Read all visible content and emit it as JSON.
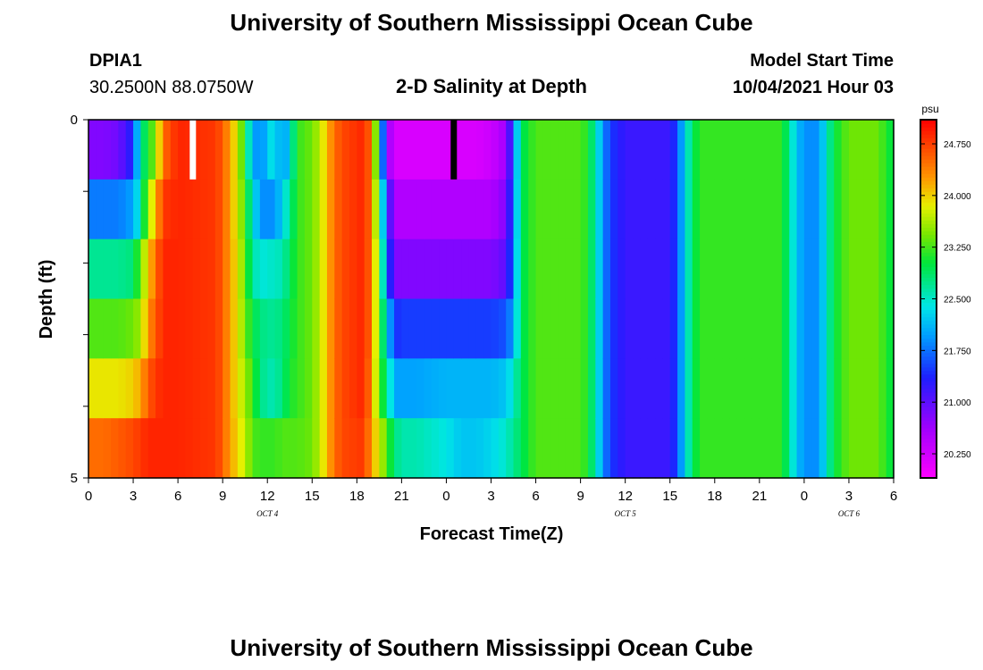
{
  "header": {
    "title": "University of Southern Mississippi Ocean Cube",
    "footer_title": "University of Southern Mississippi Ocean Cube",
    "station": "DPIA1",
    "coords": "30.2500N  88.0750W",
    "plot_title": "2-D Salinity at Depth",
    "start_label": "Model Start Time",
    "start_value": "10/04/2021 Hour 03"
  },
  "chart_data": {
    "type": "heatmap",
    "title": "2-D Salinity at Depth",
    "xlabel": "Forecast Time(Z)",
    "ylabel": "Depth (ft)",
    "x_ticks": [
      "0",
      "3",
      "6",
      "9",
      "12",
      "15",
      "18",
      "21",
      "0",
      "3",
      "6",
      "9",
      "12",
      "15",
      "18",
      "21",
      "0",
      "3",
      "6"
    ],
    "x_hours": [
      0,
      54
    ],
    "date_labels": [
      {
        "label": "OCT 4",
        "hour": 12
      },
      {
        "label": "OCT 5",
        "hour": 36
      },
      {
        "label": "OCT 6",
        "hour": 51
      }
    ],
    "y_ticks": [
      "0",
      "5"
    ],
    "y_range": [
      0,
      5
    ],
    "depth_levels": [
      0,
      1,
      2,
      3,
      4,
      5
    ],
    "colorbar": {
      "unit": "psu",
      "min": 19.9,
      "max": 25.1,
      "tick_values": [
        20.25,
        21.0,
        21.75,
        22.5,
        23.25,
        24.0,
        24.75
      ],
      "tick_labels": [
        "20.250",
        "21.000",
        "21.750",
        "22.500",
        "23.250",
        "24.000",
        "24.750"
      ]
    },
    "columns": [
      {
        "t": 0.0,
        "v": [
          20.8,
          21.8,
          22.7,
          23.3,
          23.9,
          24.5
        ]
      },
      {
        "t": 1.0,
        "v": [
          20.8,
          21.8,
          22.7,
          23.3,
          23.9,
          24.5
        ]
      },
      {
        "t": 2.0,
        "v": [
          20.9,
          21.8,
          22.7,
          23.3,
          23.9,
          24.6
        ]
      },
      {
        "t": 3.0,
        "v": [
          21.4,
          22.0,
          22.8,
          23.4,
          24.0,
          24.7
        ]
      },
      {
        "t": 3.5,
        "v": [
          22.7,
          22.6,
          23.4,
          23.6,
          24.2,
          24.8
        ]
      },
      {
        "t": 4.0,
        "v": [
          23.1,
          23.6,
          24.0,
          24.3,
          24.6,
          24.9
        ]
      },
      {
        "t": 4.5,
        "v": [
          23.5,
          24.1,
          24.5,
          24.6,
          24.8,
          24.9
        ]
      },
      {
        "t": 5.0,
        "v": [
          24.5,
          24.8,
          24.9,
          24.9,
          24.9,
          24.9
        ]
      },
      {
        "t": 6.0,
        "v": [
          24.9,
          24.9,
          24.9,
          24.9,
          24.9,
          24.9
        ]
      },
      {
        "t": 8.5,
        "v": [
          24.8,
          24.8,
          24.8,
          24.8,
          24.8,
          24.8
        ]
      },
      {
        "t": 9.0,
        "v": [
          24.6,
          24.6,
          24.6,
          24.6,
          24.6,
          24.6
        ]
      },
      {
        "t": 9.5,
        "v": [
          24.2,
          24.2,
          24.2,
          24.2,
          24.2,
          24.2
        ]
      },
      {
        "t": 10.0,
        "v": [
          23.8,
          23.8,
          23.9,
          23.9,
          23.9,
          24.0
        ]
      },
      {
        "t": 10.5,
        "v": [
          23.0,
          23.2,
          23.3,
          23.4,
          23.6,
          23.7
        ]
      },
      {
        "t": 11.0,
        "v": [
          22.1,
          22.5,
          22.7,
          23.0,
          23.2,
          23.3
        ]
      },
      {
        "t": 11.5,
        "v": [
          21.8,
          21.9,
          22.4,
          22.8,
          22.8,
          23.2
        ]
      },
      {
        "t": 12.0,
        "v": [
          22.2,
          21.9,
          22.5,
          22.7,
          22.6,
          23.2
        ]
      },
      {
        "t": 12.5,
        "v": [
          22.5,
          21.9,
          22.5,
          22.7,
          22.6,
          23.2
        ]
      },
      {
        "t": 13.0,
        "v": [
          21.8,
          22.3,
          22.6,
          22.8,
          22.8,
          23.3
        ]
      },
      {
        "t": 13.5,
        "v": [
          22.4,
          22.7,
          22.9,
          23.0,
          23.1,
          23.3
        ]
      },
      {
        "t": 14.0,
        "v": [
          23.2,
          23.2,
          23.2,
          23.2,
          23.2,
          23.3
        ]
      },
      {
        "t": 15.0,
        "v": [
          23.4,
          23.4,
          23.4,
          23.4,
          23.4,
          23.4
        ]
      },
      {
        "t": 15.5,
        "v": [
          23.7,
          23.7,
          23.7,
          23.7,
          23.7,
          23.7
        ]
      },
      {
        "t": 16.0,
        "v": [
          24.1,
          24.1,
          24.1,
          24.1,
          24.1,
          24.1
        ]
      },
      {
        "t": 16.5,
        "v": [
          24.5,
          24.5,
          24.5,
          24.5,
          24.5,
          24.5
        ]
      },
      {
        "t": 17.0,
        "v": [
          24.7,
          24.7,
          24.7,
          24.7,
          24.7,
          24.7
        ]
      },
      {
        "t": 18.5,
        "v": [
          24.9,
          24.9,
          24.9,
          24.9,
          24.9,
          24.8
        ]
      },
      {
        "t": 19.0,
        "v": [
          24.4,
          24.4,
          24.4,
          24.4,
          24.3,
          24.2
        ]
      },
      {
        "t": 19.5,
        "v": [
          22.6,
          23.0,
          23.3,
          23.3,
          23.3,
          23.8
        ]
      },
      {
        "t": 20.0,
        "v": [
          20.8,
          21.5,
          21.8,
          22.4,
          22.8,
          23.3
        ]
      },
      {
        "t": 20.5,
        "v": [
          20.2,
          20.5,
          20.8,
          21.4,
          22.0,
          22.8
        ]
      },
      {
        "t": 21.0,
        "v": [
          20.2,
          20.5,
          20.8,
          21.5,
          22.0,
          22.6
        ]
      },
      {
        "t": 22.0,
        "v": [
          20.2,
          20.5,
          20.8,
          21.5,
          22.0,
          22.6
        ]
      },
      {
        "t": 24.0,
        "v": [
          20.2,
          20.5,
          20.8,
          21.5,
          22.1,
          22.4
        ]
      },
      {
        "t": 25.0,
        "v": [
          20.2,
          20.5,
          20.8,
          21.5,
          22.1,
          22.2
        ]
      },
      {
        "t": 26.0,
        "v": [
          20.2,
          20.5,
          20.8,
          21.5,
          22.1,
          22.2
        ]
      },
      {
        "t": 27.0,
        "v": [
          20.3,
          20.5,
          20.8,
          21.5,
          22.1,
          22.3
        ]
      },
      {
        "t": 28.0,
        "v": [
          20.6,
          20.8,
          21.0,
          21.6,
          22.2,
          22.5
        ]
      },
      {
        "t": 28.5,
        "v": [
          21.6,
          21.7,
          21.8,
          22.0,
          22.5,
          22.7
        ]
      },
      {
        "t": 29.0,
        "v": [
          22.9,
          22.9,
          22.9,
          22.9,
          22.9,
          22.9
        ]
      },
      {
        "t": 30.0,
        "v": [
          23.3,
          23.3,
          23.3,
          23.3,
          23.3,
          23.3
        ]
      },
      {
        "t": 33.0,
        "v": [
          23.3,
          23.3,
          23.3,
          23.3,
          23.3,
          23.3
        ]
      },
      {
        "t": 33.5,
        "v": [
          23.1,
          23.1,
          23.1,
          23.1,
          23.1,
          23.1
        ]
      },
      {
        "t": 34.0,
        "v": [
          22.6,
          22.6,
          22.6,
          22.6,
          22.6,
          22.6
        ]
      },
      {
        "t": 34.5,
        "v": [
          21.9,
          21.9,
          21.9,
          21.9,
          21.9,
          21.9
        ]
      },
      {
        "t": 35.0,
        "v": [
          21.5,
          21.5,
          21.5,
          21.5,
          21.5,
          21.5
        ]
      },
      {
        "t": 36.0,
        "v": [
          21.2,
          21.2,
          21.2,
          21.2,
          21.2,
          21.2
        ]
      },
      {
        "t": 39.0,
        "v": [
          21.2,
          21.2,
          21.2,
          21.2,
          21.2,
          21.2
        ]
      },
      {
        "t": 39.5,
        "v": [
          21.6,
          21.6,
          21.6,
          21.6,
          21.6,
          21.6
        ]
      },
      {
        "t": 40.0,
        "v": [
          22.3,
          22.3,
          22.3,
          22.3,
          22.3,
          22.3
        ]
      },
      {
        "t": 40.5,
        "v": [
          22.9,
          22.9,
          22.9,
          22.9,
          22.9,
          22.9
        ]
      },
      {
        "t": 41.0,
        "v": [
          23.2,
          23.2,
          23.2,
          23.2,
          23.2,
          23.2
        ]
      },
      {
        "t": 46.5,
        "v": [
          23.2,
          23.2,
          23.2,
          23.2,
          23.2,
          23.2
        ]
      },
      {
        "t": 47.0,
        "v": [
          22.7,
          22.7,
          22.7,
          22.7,
          22.7,
          22.7
        ]
      },
      {
        "t": 47.5,
        "v": [
          22.2,
          22.2,
          22.2,
          22.2,
          22.2,
          22.2
        ]
      },
      {
        "t": 48.0,
        "v": [
          21.9,
          21.9,
          21.9,
          21.9,
          21.9,
          21.9
        ]
      },
      {
        "t": 49.0,
        "v": [
          21.9,
          21.9,
          21.9,
          21.9,
          21.9,
          21.9
        ]
      },
      {
        "t": 49.5,
        "v": [
          22.5,
          22.5,
          22.5,
          22.5,
          22.5,
          22.5
        ]
      },
      {
        "t": 50.0,
        "v": [
          23.0,
          23.0,
          23.0,
          23.0,
          23.0,
          23.0
        ]
      },
      {
        "t": 51.0,
        "v": [
          23.4,
          23.4,
          23.4,
          23.4,
          23.4,
          23.4
        ]
      },
      {
        "t": 53.0,
        "v": [
          23.4,
          23.4,
          23.4,
          23.4,
          23.4,
          23.4
        ]
      },
      {
        "t": 53.5,
        "v": [
          23.1,
          23.1,
          23.1,
          23.1,
          23.1,
          23.1
        ]
      },
      {
        "t": 54.0,
        "v": [
          23.0,
          23.0,
          23.0,
          23.0,
          23.0,
          23.0
        ]
      }
    ],
    "markers": [
      {
        "hour": 7.0,
        "color": "#ffffff"
      },
      {
        "hour": 24.5,
        "color": "#000000"
      }
    ]
  }
}
